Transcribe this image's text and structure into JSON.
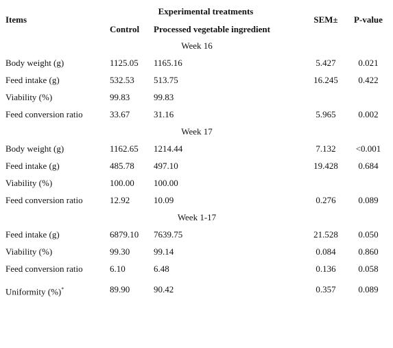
{
  "header": {
    "items": "Items",
    "treatments": "Experimental treatments",
    "control": "Control",
    "processed": "Processed vegetable ingredient",
    "sem": "SEM±",
    "p": "P-value"
  },
  "sections": [
    {
      "title": "Week 16",
      "rows": [
        {
          "item": "Body weight (g)",
          "control": "1125.05",
          "processed": "1165.16",
          "sem": "5.427",
          "p": "0.021"
        },
        {
          "item": "Feed intake (g)",
          "control": "532.53",
          "processed": "513.75",
          "sem": "16.245",
          "p": "0.422"
        },
        {
          "item": "Viability (%)",
          "control": "99.83",
          "processed": "99.83"
        },
        {
          "item": "Feed conversion ratio",
          "control": "33.67",
          "processed": "31.16",
          "sem": "5.965",
          "p": "0.002"
        }
      ]
    },
    {
      "title": "Week 17",
      "rows": [
        {
          "item": "Body weight (g)",
          "control": "1162.65",
          "processed": "1214.44",
          "sem": "7.132",
          "p": "<0.001"
        },
        {
          "item": "Feed intake (g)",
          "control": "485.78",
          "processed": "497.10",
          "sem": "19.428",
          "p": "0.684"
        },
        {
          "item": "Viability (%)",
          "control": "100.00",
          "processed": "100.00"
        },
        {
          "item": "Feed conversion ratio",
          "control": "12.92",
          "processed": "10.09",
          "sem": "0.276",
          "p": "0.089"
        }
      ]
    },
    {
      "title": "Week 1-17",
      "rows": [
        {
          "item": "Feed intake (g)",
          "control": "6879.10",
          "processed": "7639.75",
          "sem": "21.528",
          "p": "0.050"
        },
        {
          "item": "Viability (%)",
          "control": "99.30",
          "processed": "99.14",
          "sem": "0.084",
          "p": "0.860"
        },
        {
          "item": "Feed conversion ratio",
          "control": "6.10",
          "processed": "6.48",
          "sem": "0.136",
          "p": "0.058"
        },
        {
          "item": "Uniformity (%)",
          "note": "*",
          "control": "89.90",
          "processed": "90.42",
          "sem": "0.357",
          "p": "0.089"
        }
      ]
    }
  ]
}
